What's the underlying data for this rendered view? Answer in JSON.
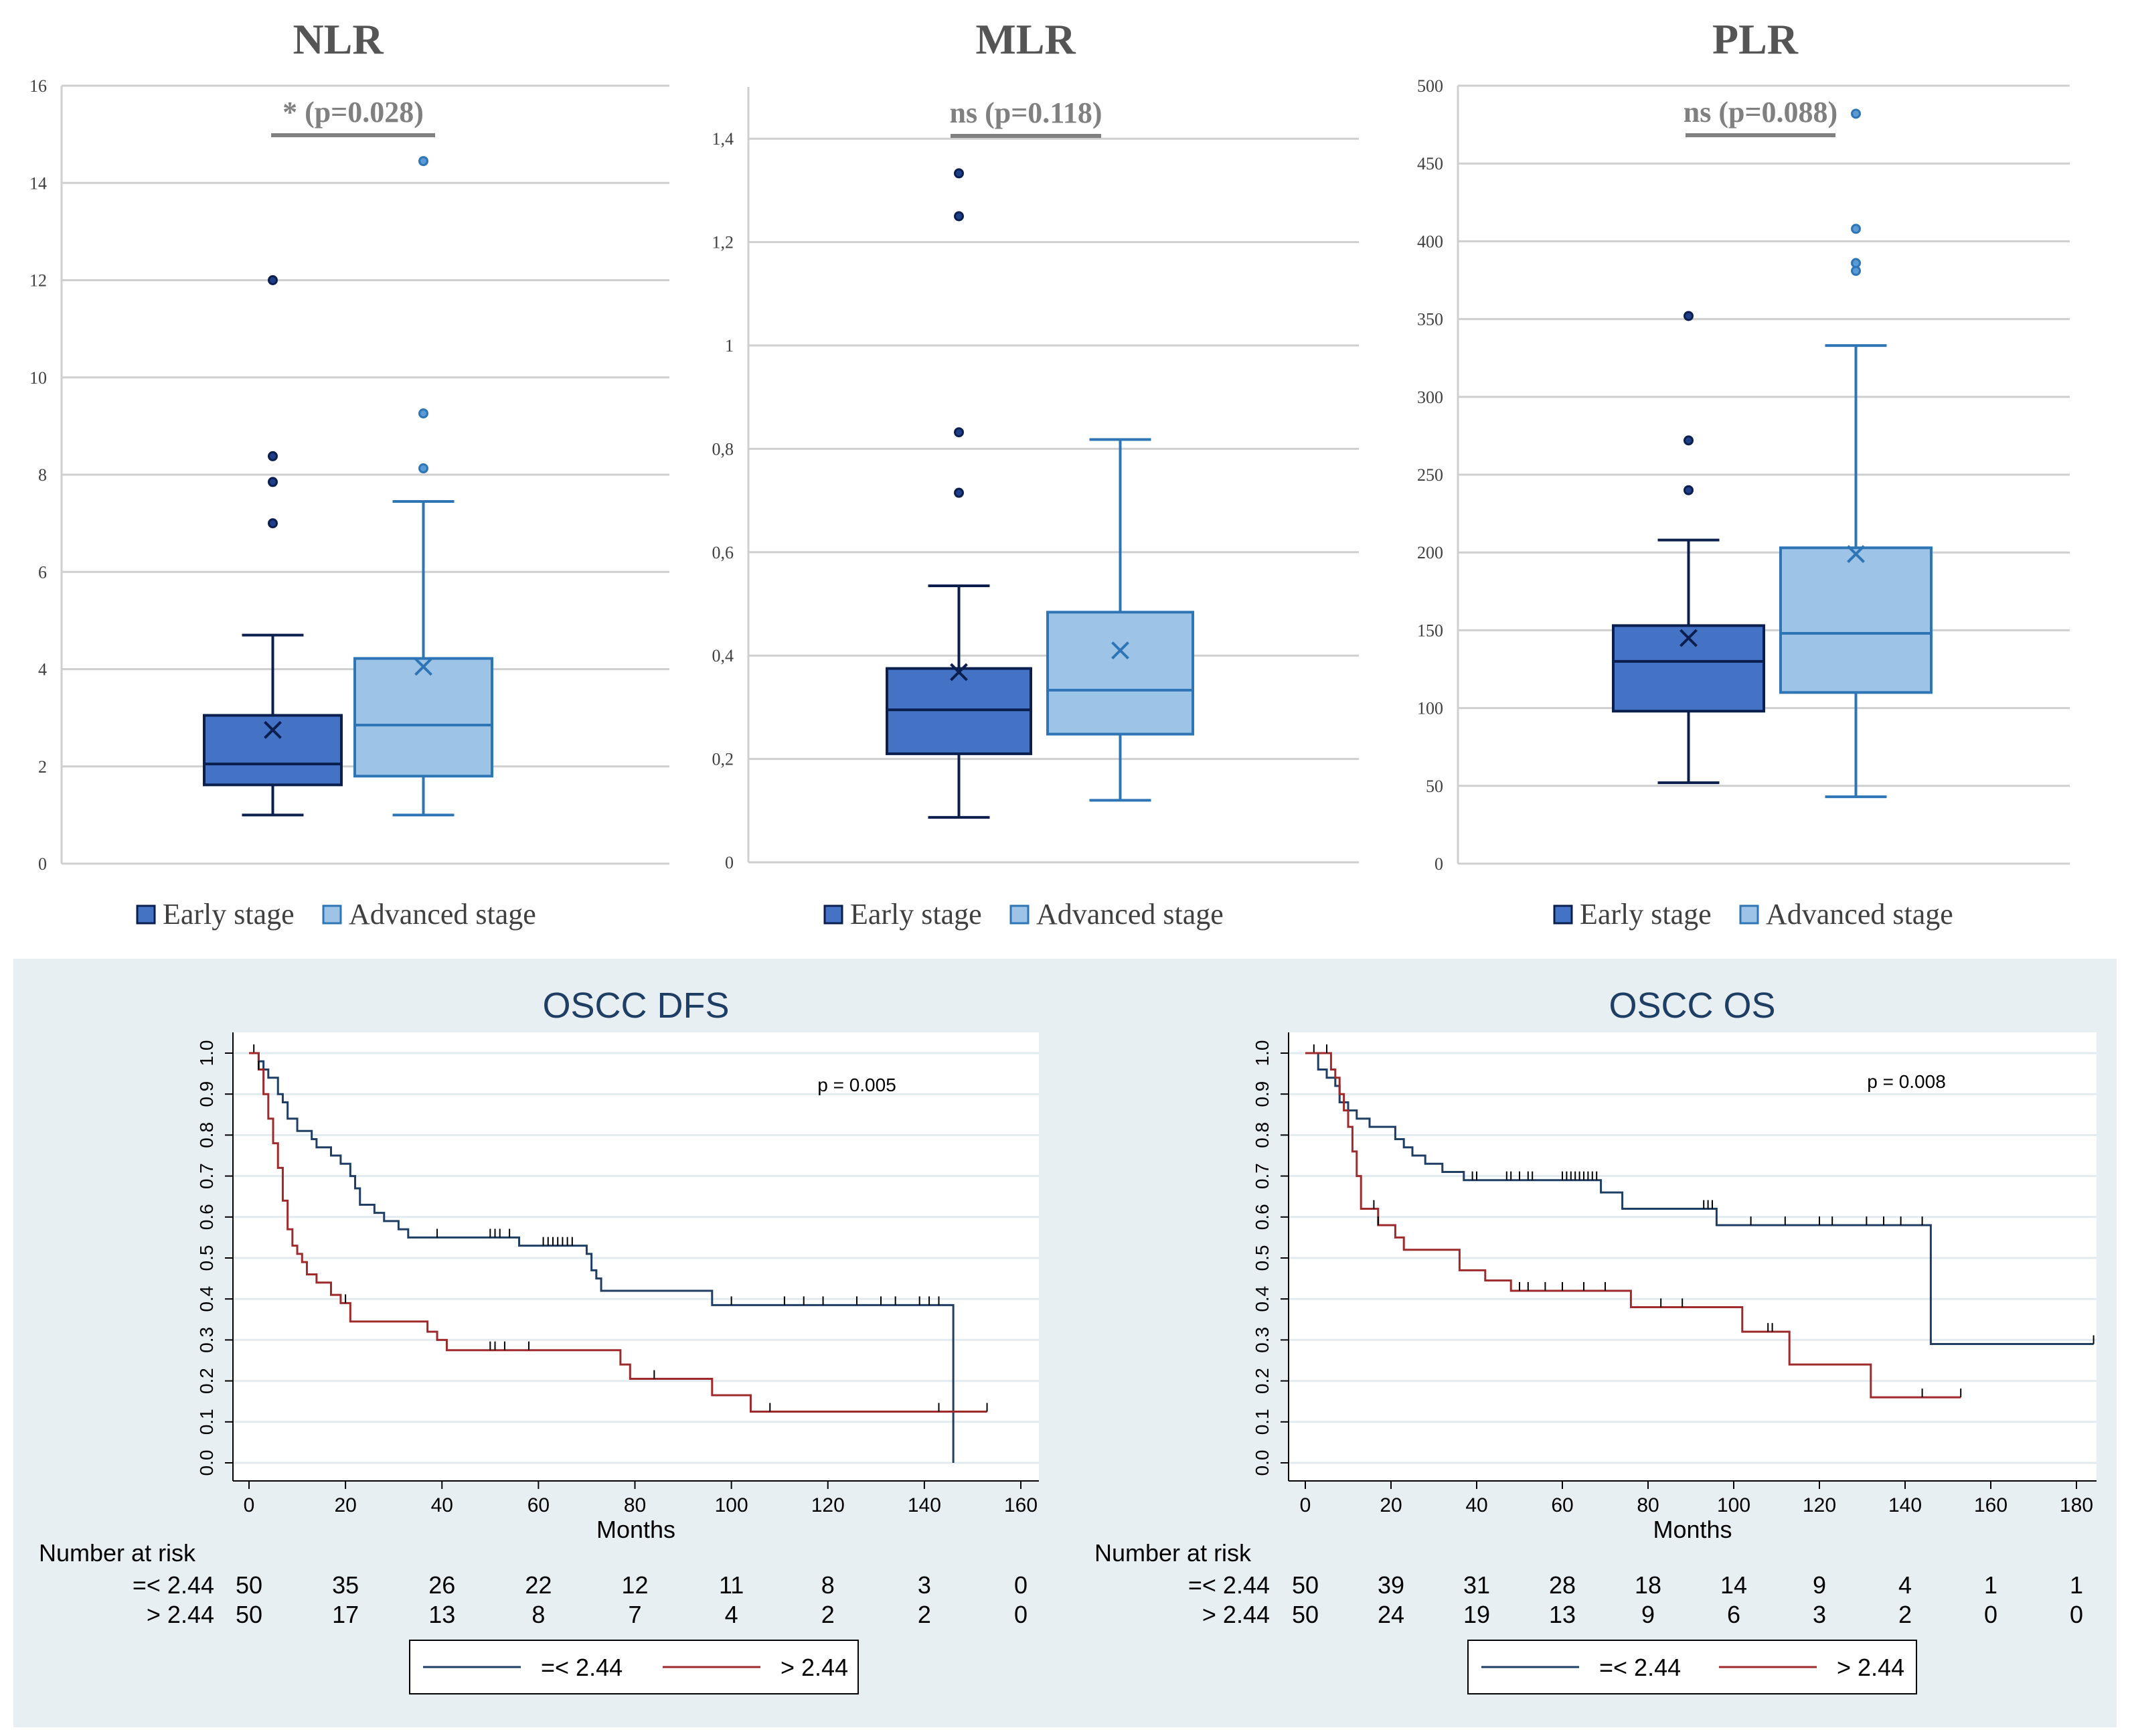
{
  "chart_data": [
    {
      "type": "box",
      "id": "nlr",
      "title": "NLR",
      "ylim": [
        0,
        16
      ],
      "yticks": [
        0,
        2,
        4,
        6,
        8,
        10,
        12,
        14,
        16
      ],
      "ytick_labels": [
        "0",
        "2",
        "4",
        "6",
        "8",
        "10",
        "12",
        "14",
        "16"
      ],
      "significance": "* (p=0.028)",
      "groups": [
        {
          "name": "Early stage",
          "min": 1.0,
          "q1": 1.62,
          "median": 2.05,
          "q3": 3.05,
          "max": 4.7,
          "mean": 2.75,
          "outliers": [
            7.0,
            7.85,
            8.38,
            12.0
          ]
        },
        {
          "name": "Advanced stage",
          "min": 1.0,
          "q1": 1.8,
          "median": 2.85,
          "q3": 4.22,
          "max": 7.45,
          "mean": 4.05,
          "outliers": [
            8.13,
            9.26,
            14.45
          ]
        }
      ],
      "legend": [
        "Early stage",
        "Advanced stage"
      ]
    },
    {
      "type": "box",
      "id": "mlr",
      "title": "MLR",
      "ylim": [
        0,
        1.5
      ],
      "yticks": [
        0,
        0.2,
        0.4,
        0.6,
        0.8,
        1.0,
        1.2,
        1.4
      ],
      "ytick_labels": [
        "0",
        "0,2",
        "0,4",
        "0,6",
        "0,8",
        "1",
        "1,2",
        "1,4"
      ],
      "significance": "ns (p=0.118)",
      "groups": [
        {
          "name": "Early stage",
          "min": 0.087,
          "q1": 0.21,
          "median": 0.295,
          "q3": 0.375,
          "max": 0.535,
          "mean": 0.368,
          "outliers": [
            0.715,
            0.832,
            1.25,
            1.333
          ]
        },
        {
          "name": "Advanced stage",
          "min": 0.12,
          "q1": 0.248,
          "median": 0.333,
          "q3": 0.484,
          "max": 0.818,
          "mean": 0.41,
          "outliers": []
        }
      ],
      "legend": [
        "Early stage",
        "Advanced stage"
      ]
    },
    {
      "type": "box",
      "id": "plr",
      "title": "PLR",
      "ylim": [
        0,
        500
      ],
      "yticks": [
        0,
        50,
        100,
        150,
        200,
        250,
        300,
        350,
        400,
        450,
        500
      ],
      "ytick_labels": [
        "0",
        "50",
        "100",
        "150",
        "200",
        "250",
        "300",
        "350",
        "400",
        "450",
        "500"
      ],
      "significance": "ns (p=0.088)",
      "groups": [
        {
          "name": "Early stage",
          "min": 52,
          "q1": 98,
          "median": 130,
          "q3": 153,
          "max": 208,
          "mean": 145,
          "outliers": [
            240,
            272,
            352
          ]
        },
        {
          "name": "Advanced stage",
          "min": 43,
          "q1": 110,
          "median": 148,
          "q3": 203,
          "max": 333,
          "mean": 199,
          "outliers": [
            381,
            386,
            408,
            482
          ]
        }
      ],
      "legend": [
        "Early stage",
        "Advanced stage"
      ]
    },
    {
      "type": "line",
      "subtype": "kaplan-meier",
      "id": "dfs",
      "title": "OSCC DFS",
      "xlabel": "Months",
      "xlim": [
        0,
        160
      ],
      "xticks": [
        0,
        20,
        40,
        60,
        80,
        100,
        120,
        140,
        160
      ],
      "ylim": [
        0,
        1
      ],
      "yticks": [
        0.0,
        0.1,
        0.2,
        0.3,
        0.4,
        0.5,
        0.6,
        0.7,
        0.8,
        0.9,
        1.0
      ],
      "ytick_labels": [
        "0.0",
        "0.1",
        "0.2",
        "0.3",
        "0.4",
        "0.5",
        "0.6",
        "0.7",
        "0.8",
        "0.9",
        "1.0"
      ],
      "pvalue_label": "p = 0.005",
      "series": [
        {
          "name": "=< 2.44",
          "color": "#1f3e63",
          "x": [
            0,
            2,
            3,
            4,
            6,
            7,
            8,
            10,
            13,
            14,
            17,
            19,
            21,
            22,
            23,
            26,
            28,
            31,
            33,
            35,
            40,
            56,
            70,
            71,
            72,
            73,
            96,
            146
          ],
          "y": [
            1.0,
            0.98,
            0.96,
            0.94,
            0.9,
            0.88,
            0.84,
            0.81,
            0.79,
            0.77,
            0.75,
            0.73,
            0.7,
            0.67,
            0.63,
            0.61,
            0.59,
            0.57,
            0.55,
            0.55,
            0.55,
            0.53,
            0.51,
            0.47,
            0.45,
            0.42,
            0.385,
            0.0
          ],
          "censor_x": [
            1,
            39,
            50,
            51,
            52,
            54,
            61,
            62,
            63,
            64,
            65,
            66,
            67,
            100,
            111,
            115,
            119,
            126,
            131,
            134,
            139,
            141,
            143
          ],
          "end_x": 146
        },
        {
          "name": "> 2.44",
          "color": "#9e2a2b",
          "x": [
            0,
            2,
            3,
            4,
            5,
            6,
            7,
            8,
            9,
            10,
            11,
            12,
            14,
            17,
            19,
            21,
            37,
            39,
            41,
            77,
            79,
            96,
            104
          ],
          "y": [
            1.0,
            0.96,
            0.9,
            0.84,
            0.78,
            0.72,
            0.64,
            0.57,
            0.53,
            0.51,
            0.49,
            0.46,
            0.44,
            0.41,
            0.39,
            0.345,
            0.32,
            0.3,
            0.275,
            0.24,
            0.205,
            0.165,
            0.125
          ],
          "censor_x": [
            2,
            20,
            50,
            51,
            53,
            58,
            84,
            108,
            143,
            153
          ],
          "end_x": 153
        }
      ],
      "risk_table": {
        "heading": "Number at risk",
        "rows": [
          {
            "label": "=< 2.44",
            "values": [
              50,
              35,
              26,
              22,
              12,
              11,
              8,
              3,
              0
            ]
          },
          {
            "label": "> 2.44",
            "values": [
              50,
              17,
              13,
              8,
              7,
              4,
              2,
              2,
              0
            ]
          }
        ]
      },
      "legend": [
        "=< 2.44",
        "> 2.44"
      ]
    },
    {
      "type": "line",
      "subtype": "kaplan-meier",
      "id": "os",
      "title": "OSCC OS",
      "xlabel": "Months",
      "xlim": [
        0,
        180
      ],
      "xticks": [
        0,
        20,
        40,
        60,
        80,
        100,
        120,
        140,
        160,
        180
      ],
      "ylim": [
        0,
        1
      ],
      "yticks": [
        0.0,
        0.1,
        0.2,
        0.3,
        0.4,
        0.5,
        0.6,
        0.7,
        0.8,
        0.9,
        1.0
      ],
      "ytick_labels": [
        "0.0",
        "0.1",
        "0.2",
        "0.3",
        "0.4",
        "0.5",
        "0.6",
        "0.7",
        "0.8",
        "0.9",
        "1.0"
      ],
      "pvalue_label": "p = 0.008",
      "series": [
        {
          "name": "=< 2.44",
          "color": "#1f3e63",
          "x": [
            0,
            3,
            5,
            7,
            8,
            10,
            12,
            15,
            21,
            23,
            25,
            28,
            32,
            37,
            69,
            74,
            96,
            146
          ],
          "y": [
            1.0,
            0.96,
            0.94,
            0.92,
            0.88,
            0.86,
            0.84,
            0.82,
            0.79,
            0.77,
            0.75,
            0.73,
            0.71,
            0.69,
            0.66,
            0.62,
            0.58,
            0.29
          ],
          "censor_x": [
            2,
            39,
            40,
            47,
            48,
            50,
            52,
            53,
            60,
            61,
            62,
            63,
            64,
            65,
            66,
            67,
            68,
            93,
            94,
            95,
            104,
            112,
            120,
            123,
            131,
            135,
            139,
            144,
            184
          ],
          "end_x": 184
        },
        {
          "name": "> 2.44",
          "color": "#9e2a2b",
          "x": [
            0,
            6,
            7,
            8,
            9,
            10,
            11,
            12,
            13,
            17,
            21,
            23,
            36,
            42,
            48,
            76,
            102,
            113,
            132
          ],
          "y": [
            1.0,
            0.96,
            0.94,
            0.9,
            0.86,
            0.82,
            0.76,
            0.7,
            0.62,
            0.58,
            0.55,
            0.52,
            0.47,
            0.445,
            0.42,
            0.38,
            0.32,
            0.24,
            0.16
          ],
          "censor_x": [
            5,
            16,
            17,
            50,
            52,
            56,
            60,
            65,
            70,
            83,
            88,
            108,
            109,
            144,
            153
          ],
          "end_x": 153
        }
      ],
      "risk_table": {
        "heading": "Number at risk",
        "rows": [
          {
            "label": "=< 2.44",
            "values": [
              50,
              39,
              31,
              28,
              18,
              14,
              9,
              4,
              1,
              1
            ]
          },
          {
            "label": "> 2.44",
            "values": [
              50,
              24,
              19,
              13,
              9,
              6,
              3,
              2,
              0,
              0
            ]
          }
        ]
      },
      "legend": [
        "=< 2.44",
        "> 2.44"
      ]
    }
  ]
}
